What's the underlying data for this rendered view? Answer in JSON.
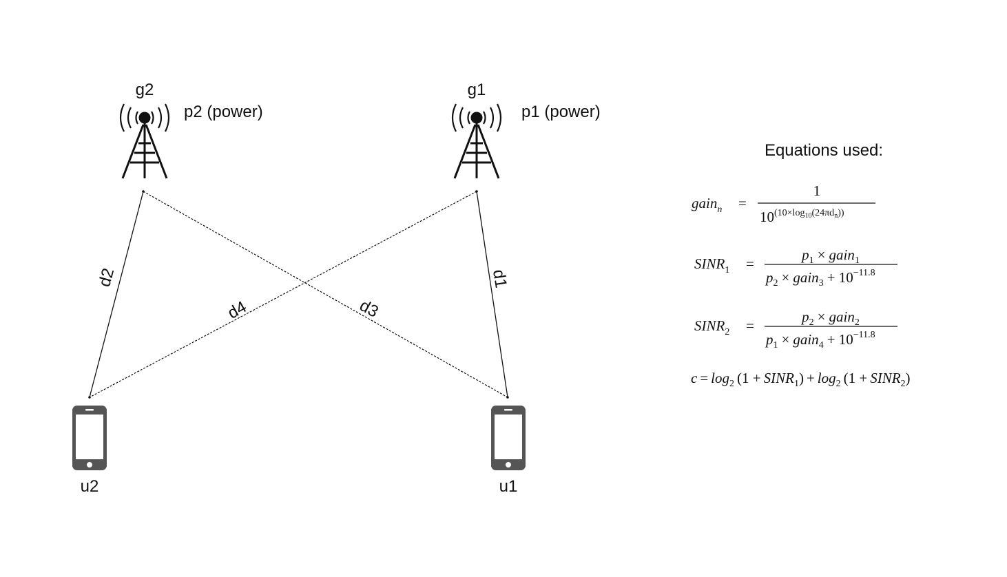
{
  "towers": [
    {
      "id": "g2",
      "name": "g2",
      "power": "p2 (power)"
    },
    {
      "id": "g1",
      "name": "g1",
      "power": "p1 (power)"
    }
  ],
  "users": [
    {
      "id": "u2",
      "name": "u2"
    },
    {
      "id": "u1",
      "name": "u1"
    }
  ],
  "links": [
    {
      "id": "d1",
      "label": "d1",
      "from": "g1",
      "to": "u1",
      "style": "solid"
    },
    {
      "id": "d2",
      "label": "d2",
      "from": "g2",
      "to": "u2",
      "style": "solid"
    },
    {
      "id": "d3",
      "label": "d3",
      "from": "g2",
      "to": "u1",
      "style": "dashed"
    },
    {
      "id": "d4",
      "label": "d4",
      "from": "g1",
      "to": "u2",
      "style": "dashed"
    }
  ],
  "equations": {
    "heading": "Equations used:",
    "gain": {
      "lhs": "gain",
      "lhs_sub": "n",
      "eq": "=",
      "numerator": "1",
      "denominator_base": "10",
      "denominator_exp": "(10×log",
      "denominator_exp_sub": "10",
      "denominator_exp_rest": "(24πd",
      "denominator_exp_rest_sub": "n",
      "denominator_exp_close": "))"
    },
    "sinr1": {
      "lhs": "SINR",
      "lhs_sub": "1",
      "eq": "=",
      "num_p": "p",
      "num_p_sub": "1",
      "num_times": "×",
      "num_gain": "gain",
      "num_gain_sub": "1",
      "den_p": "p",
      "den_p_sub": "2",
      "den_times": "×",
      "den_gain": "gain",
      "den_gain_sub": "3",
      "den_plus": "+ 10",
      "den_exp": "−11.8"
    },
    "sinr2": {
      "lhs": "SINR",
      "lhs_sub": "2",
      "eq": "=",
      "num_p": "p",
      "num_p_sub": "2",
      "num_times": "×",
      "num_gain": "gain",
      "num_gain_sub": "2",
      "den_p": "p",
      "den_p_sub": "1",
      "den_times": "×",
      "den_gain": "gain",
      "den_gain_sub": "4",
      "den_plus": "+ 10",
      "den_exp": "−11.8"
    },
    "capacity": {
      "c": "c",
      "eq": "=",
      "log1": "log",
      "log1_sub": "2",
      "open1": "(1 +",
      "sinr1": "SINR",
      "sinr1_sub": "1",
      "close1": ")",
      "plus": "+",
      "log2": "log",
      "log2_sub": "2",
      "open2": "(1 +",
      "sinr2": "SINR",
      "sinr2_sub": "2",
      "close2": ")"
    }
  },
  "colors": {
    "ink": "#111111",
    "phone_body": "#555555",
    "background": "#ffffff"
  }
}
